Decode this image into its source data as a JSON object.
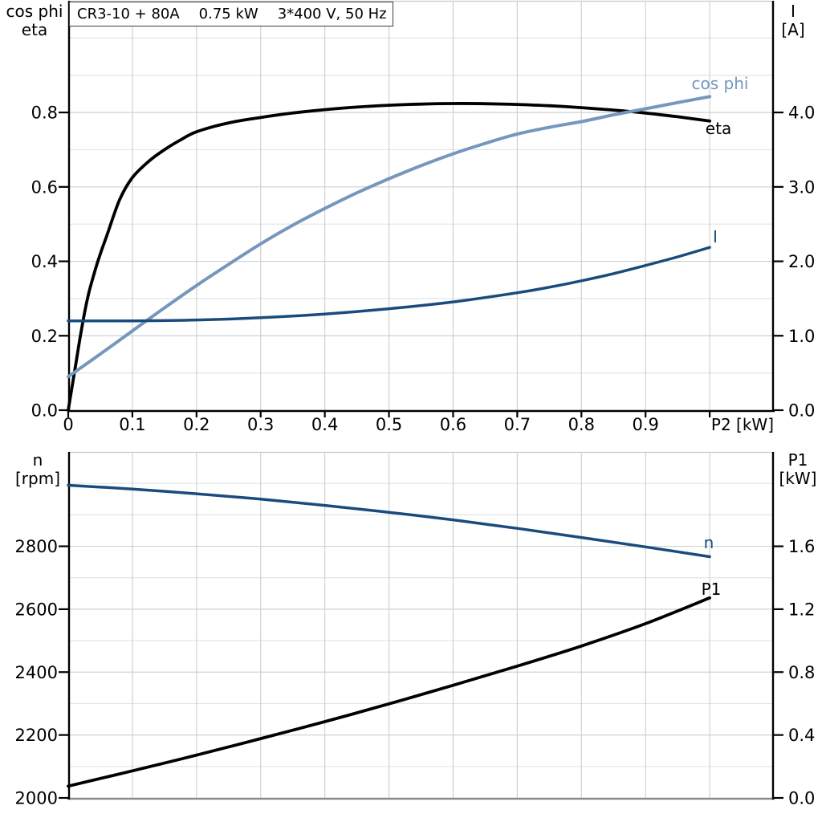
{
  "title_box": {
    "parts": [
      "CR3-10 + 80A",
      "0.75 kW",
      "3*400 V, 50 Hz"
    ]
  },
  "colors": {
    "black": "#000000",
    "steel_blue": "#7697bd",
    "navy": "#1a4b7d",
    "grid_major": "#ced2d4",
    "grid_minor": "#e2e4e5",
    "frame_gray": "#c9c9c9",
    "baseline_gray": "#8a8a8a",
    "axis": "#000000",
    "text": "#000000"
  },
  "chart_data": [
    {
      "type": "line",
      "title": "CR3-10 + 80A  0.75 kW  3*400 V, 50 Hz",
      "x_axis": {
        "label": "P2 [kW]",
        "range": [
          0,
          1.1
        ],
        "grid_step": 0.1,
        "tick_values": [
          0,
          0.1,
          0.2,
          0.3,
          0.4,
          0.5,
          0.6,
          0.7,
          0.8,
          0.9,
          1.0
        ],
        "tick_labels": [
          "0",
          "0.1",
          "0.2",
          "0.3",
          "0.4",
          "0.5",
          "0.6",
          "0.7",
          "0.8",
          "0.9",
          ""
        ]
      },
      "y_left": {
        "header": [
          "cos phi",
          "eta"
        ],
        "range": [
          0,
          1.1
        ],
        "grid_step": 0.1,
        "tick_values": [
          0,
          0.2,
          0.4,
          0.6,
          0.8
        ],
        "tick_labels": [
          "0.0",
          "0.2",
          "0.4",
          "0.6",
          "0.8"
        ]
      },
      "y_right": {
        "header": [
          "I",
          "[A]"
        ],
        "range": [
          0,
          5.5
        ],
        "tick_values": [
          0,
          1,
          2,
          3,
          4
        ],
        "tick_labels": [
          "0.0",
          "1.0",
          "2.0",
          "3.0",
          "4.0"
        ]
      },
      "series": [
        {
          "name": "eta",
          "axis": "left",
          "color": "black",
          "points": [
            [
              0,
              0
            ],
            [
              0.01,
              0.105
            ],
            [
              0.02,
              0.21
            ],
            [
              0.03,
              0.3
            ],
            [
              0.04,
              0.365
            ],
            [
              0.05,
              0.42
            ],
            [
              0.06,
              0.468
            ],
            [
              0.08,
              0.565
            ],
            [
              0.1,
              0.625
            ],
            [
              0.125,
              0.668
            ],
            [
              0.15,
              0.7
            ],
            [
              0.175,
              0.726
            ],
            [
              0.2,
              0.748
            ],
            [
              0.25,
              0.772
            ],
            [
              0.3,
              0.7865
            ],
            [
              0.35,
              0.7985
            ],
            [
              0.4,
              0.8075
            ],
            [
              0.45,
              0.8145
            ],
            [
              0.5,
              0.8195
            ],
            [
              0.55,
              0.8225
            ],
            [
              0.6,
              0.824
            ],
            [
              0.65,
              0.8235
            ],
            [
              0.7,
              0.8215
            ],
            [
              0.75,
              0.818
            ],
            [
              0.8,
              0.813
            ],
            [
              0.85,
              0.8065
            ],
            [
              0.9,
              0.7985
            ],
            [
              0.95,
              0.7885
            ],
            [
              1.0,
              0.777
            ]
          ]
        },
        {
          "name": "cos phi",
          "axis": "left",
          "color": "steel_blue",
          "points": [
            [
              0,
              0.09
            ],
            [
              0.05,
              0.151
            ],
            [
              0.1,
              0.213
            ],
            [
              0.15,
              0.275
            ],
            [
              0.2,
              0.335
            ],
            [
              0.25,
              0.392
            ],
            [
              0.3,
              0.447
            ],
            [
              0.35,
              0.497
            ],
            [
              0.4,
              0.542
            ],
            [
              0.45,
              0.584
            ],
            [
              0.5,
              0.622
            ],
            [
              0.55,
              0.657
            ],
            [
              0.6,
              0.689
            ],
            [
              0.65,
              0.717
            ],
            [
              0.7,
              0.742
            ],
            [
              0.75,
              0.76
            ],
            [
              0.8,
              0.7755
            ],
            [
              0.85,
              0.7935
            ],
            [
              0.9,
              0.81
            ],
            [
              0.95,
              0.8265
            ],
            [
              1.0,
              0.8425
            ]
          ]
        },
        {
          "name": "I",
          "axis": "right",
          "color": "navy",
          "points": [
            [
              0,
              1.2
            ],
            [
              0.1,
              1.2
            ],
            [
              0.2,
              1.212
            ],
            [
              0.3,
              1.243
            ],
            [
              0.4,
              1.292
            ],
            [
              0.5,
              1.363
            ],
            [
              0.6,
              1.455
            ],
            [
              0.7,
              1.578
            ],
            [
              0.75,
              1.652
            ],
            [
              0.8,
              1.738
            ],
            [
              0.85,
              1.834
            ],
            [
              0.9,
              1.944
            ],
            [
              0.95,
              2.06
            ],
            [
              1.0,
              2.187
            ]
          ]
        }
      ]
    },
    {
      "type": "line",
      "x_axis": {
        "label": "",
        "range": [
          0,
          1.1
        ],
        "grid_step": 0.1,
        "tick_values": [],
        "tick_labels": []
      },
      "y_left": {
        "header": [
          "n",
          "[rpm]"
        ],
        "range": [
          2000,
          3100
        ],
        "grid_step": 100,
        "tick_values": [
          2000,
          2200,
          2400,
          2600,
          2800
        ],
        "tick_labels": [
          "2000",
          "2200",
          "2400",
          "2600",
          "2800"
        ]
      },
      "y_right": {
        "header": [
          "P1",
          "[kW]"
        ],
        "range": [
          0,
          2.2
        ],
        "tick_values": [
          0,
          0.4,
          0.8,
          1.2,
          1.6
        ],
        "tick_labels": [
          "0.0",
          "0.4",
          "0.8",
          "1.2",
          "1.6"
        ]
      },
      "series": [
        {
          "name": "n",
          "axis": "left",
          "color": "navy",
          "points": [
            [
              0,
              2994
            ],
            [
              0.1,
              2982
            ],
            [
              0.2,
              2967
            ],
            [
              0.3,
              2950
            ],
            [
              0.4,
              2930
            ],
            [
              0.5,
              2908
            ],
            [
              0.6,
              2884
            ],
            [
              0.7,
              2857
            ],
            [
              0.8,
              2828
            ],
            [
              0.9,
              2798
            ],
            [
              1.0,
              2767
            ]
          ]
        },
        {
          "name": "P1",
          "axis": "right",
          "color": "black",
          "points": [
            [
              0,
              0.075
            ],
            [
              0.1,
              0.172
            ],
            [
              0.2,
              0.272
            ],
            [
              0.3,
              0.377
            ],
            [
              0.4,
              0.485
            ],
            [
              0.5,
              0.598
            ],
            [
              0.6,
              0.716
            ],
            [
              0.7,
              0.838
            ],
            [
              0.8,
              0.966
            ],
            [
              0.9,
              1.108
            ],
            [
              1.0,
              1.272
            ]
          ]
        }
      ]
    }
  ]
}
